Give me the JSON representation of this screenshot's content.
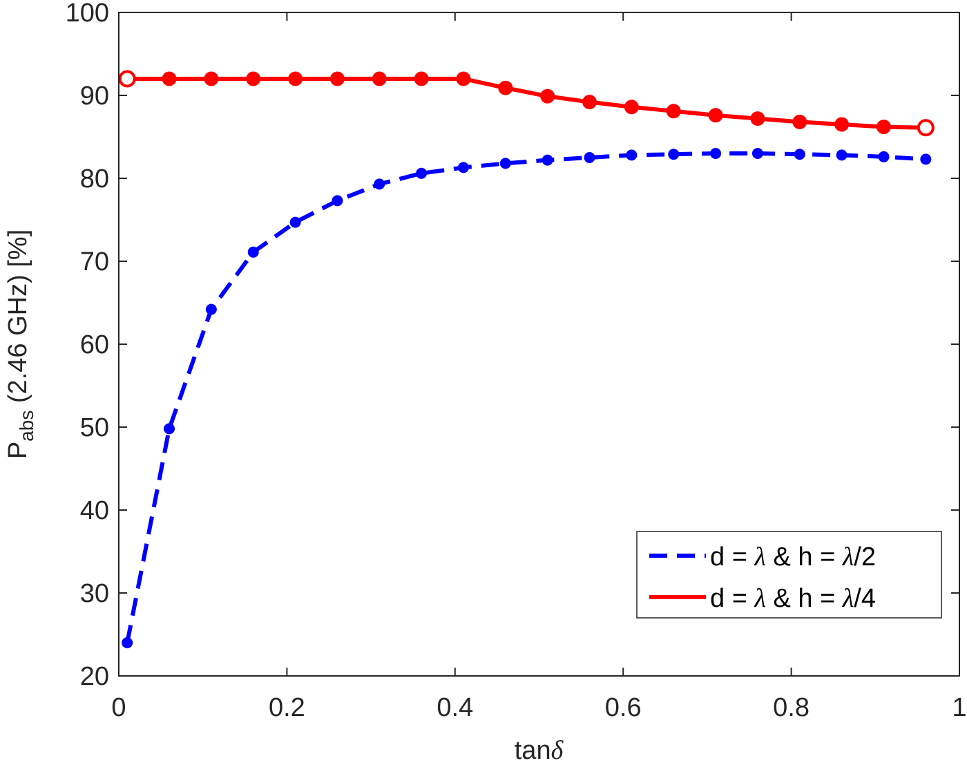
{
  "chart_data": {
    "type": "line",
    "xlabel": {
      "main": "tan",
      "greek": "δ"
    },
    "ylabel": {
      "main": "P",
      "sub": "abs",
      "rest": " (2.46 GHz) [%]"
    },
    "xlim": [
      0,
      1
    ],
    "ylim": [
      20,
      100
    ],
    "xticks": [
      0,
      0.2,
      0.4,
      0.6,
      0.8,
      1
    ],
    "xtick_labels": [
      "0",
      "0.2",
      "0.4",
      "0.6",
      "0.8",
      "1"
    ],
    "yticks": [
      20,
      30,
      40,
      50,
      60,
      70,
      80,
      90,
      100
    ],
    "ytick_labels": [
      "20",
      "30",
      "40",
      "50",
      "60",
      "70",
      "80",
      "90",
      "100"
    ],
    "grid": false,
    "legend_position": "bottom-right",
    "x": [
      0.01,
      0.06,
      0.11,
      0.16,
      0.21,
      0.26,
      0.31,
      0.36,
      0.41,
      0.46,
      0.51,
      0.56,
      0.61,
      0.66,
      0.71,
      0.76,
      0.81,
      0.86,
      0.91,
      0.96
    ],
    "series": [
      {
        "label_parts": [
          "d = ",
          "λ",
          " & h = ",
          "λ",
          "/2"
        ],
        "color": "#0000ff",
        "style": "dashed",
        "values": [
          24.0,
          49.8,
          64.2,
          71.1,
          74.7,
          77.3,
          79.3,
          80.6,
          81.3,
          81.8,
          82.2,
          82.5,
          82.8,
          82.9,
          83.0,
          83.0,
          82.9,
          82.8,
          82.6,
          82.3
        ]
      },
      {
        "label_parts": [
          "d = ",
          "λ",
          " & h = ",
          "λ",
          "/4"
        ],
        "color": "#ff0000",
        "style": "solid",
        "values": [
          92.0,
          92.0,
          92.0,
          92.0,
          92.0,
          92.0,
          92.0,
          92.0,
          92.0,
          90.9,
          89.9,
          89.2,
          88.6,
          88.1,
          87.6,
          87.2,
          86.8,
          86.5,
          86.2,
          86.1
        ]
      }
    ]
  }
}
